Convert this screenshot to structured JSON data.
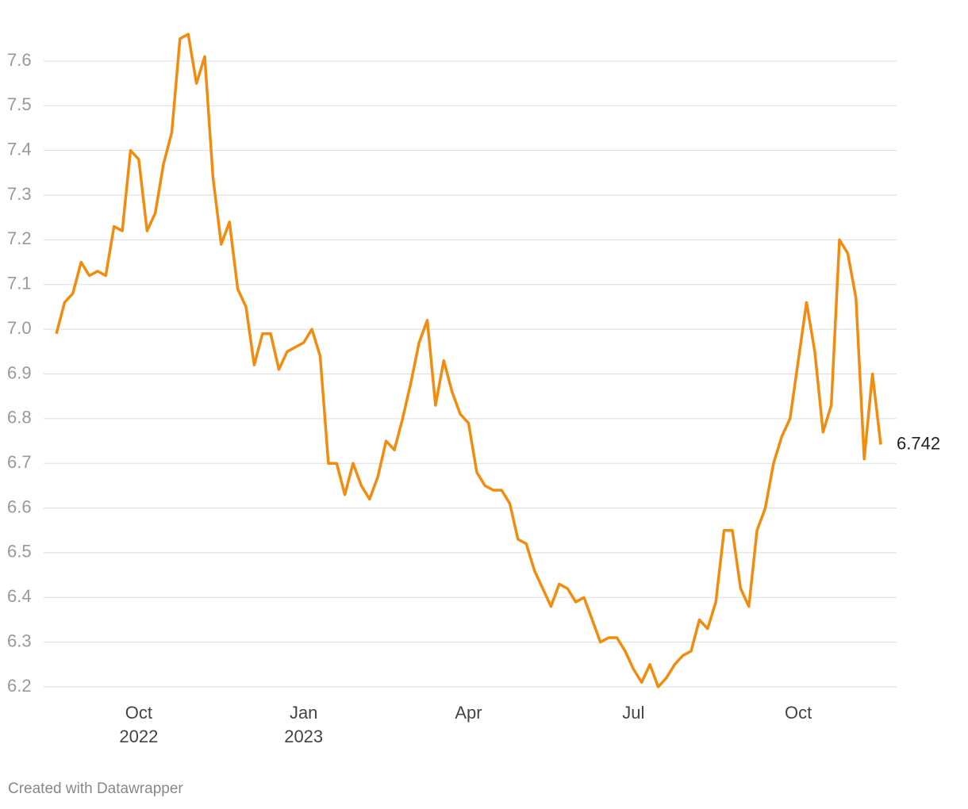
{
  "chart_data": {
    "type": "line",
    "categories": [
      null,
      null,
      null,
      null,
      null,
      null,
      null,
      null,
      null,
      null,
      "Oct 2022",
      null,
      null,
      null,
      null,
      null,
      null,
      null,
      null,
      null,
      null,
      null,
      null,
      null,
      null,
      null,
      null,
      null,
      null,
      null,
      "Jan 2023",
      null,
      null,
      null,
      null,
      null,
      null,
      null,
      null,
      null,
      null,
      null,
      null,
      null,
      null,
      null,
      null,
      null,
      null,
      null,
      "Apr",
      null,
      null,
      null,
      null,
      null,
      null,
      null,
      null,
      null,
      null,
      null,
      null,
      null,
      null,
      null,
      null,
      null,
      null,
      null,
      "Jul",
      null,
      null,
      null,
      null,
      null,
      null,
      null,
      null,
      null,
      null,
      null,
      null,
      null,
      null,
      null,
      null,
      null,
      null,
      null,
      "Oct",
      null,
      null,
      null,
      null,
      null,
      null,
      null,
      null,
      null,
      null
    ],
    "values": [
      6.99,
      7.06,
      7.08,
      7.15,
      7.12,
      7.13,
      7.12,
      7.23,
      7.22,
      7.4,
      7.38,
      7.22,
      7.26,
      7.37,
      7.44,
      7.65,
      7.66,
      7.55,
      7.61,
      7.34,
      7.19,
      7.24,
      7.09,
      7.05,
      6.92,
      6.99,
      6.99,
      6.91,
      6.95,
      6.96,
      6.97,
      7.0,
      6.94,
      6.7,
      6.7,
      6.63,
      6.7,
      6.65,
      6.62,
      6.67,
      6.75,
      6.73,
      6.8,
      6.88,
      6.97,
      7.02,
      6.83,
      6.93,
      6.86,
      6.81,
      6.79,
      6.68,
      6.65,
      6.64,
      6.64,
      6.61,
      6.53,
      6.52,
      6.46,
      6.42,
      6.38,
      6.43,
      6.42,
      6.39,
      6.4,
      6.35,
      6.3,
      6.31,
      6.31,
      6.28,
      6.24,
      6.21,
      6.25,
      6.2,
      6.22,
      6.25,
      6.27,
      6.28,
      6.35,
      6.33,
      6.39,
      6.55,
      6.55,
      6.42,
      6.38,
      6.55,
      6.6,
      6.7,
      6.76,
      6.8,
      6.93,
      7.06,
      6.95,
      6.77,
      6.83,
      7.2,
      7.17,
      7.07,
      6.71,
      6.9,
      6.742
    ],
    "color": "#f28c0f",
    "ylim": [
      6.2,
      7.7
    ],
    "yticks": [
      6.2,
      6.3,
      6.4,
      6.5,
      6.6,
      6.7,
      6.8,
      6.9,
      {
        "value": 7,
        "label": "7.0"
      },
      7.1,
      7.2,
      7.3,
      7.4,
      7.5,
      7.6
    ],
    "grid": true,
    "credit": "Created with Datawrapper"
  }
}
